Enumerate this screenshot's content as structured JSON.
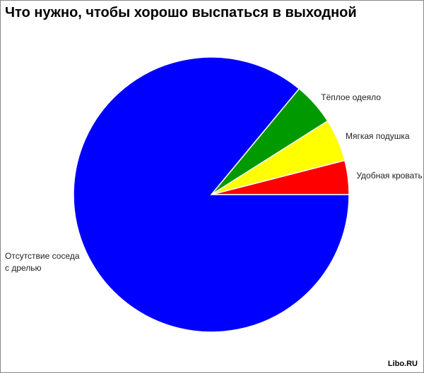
{
  "chart_data": {
    "type": "pie",
    "title": "Что нужно, чтобы хорошо выспаться в выходной",
    "categories": [
      "Удобная кровать",
      "Мягкая подушка",
      "Тёплое одеяло",
      "Отсутствие соседа с дрелью"
    ],
    "values": [
      4,
      5,
      5,
      86
    ],
    "colors": [
      "#ff0000",
      "#ffff00",
      "#009900",
      "#0000ff"
    ],
    "source": "Libo.RU"
  }
}
